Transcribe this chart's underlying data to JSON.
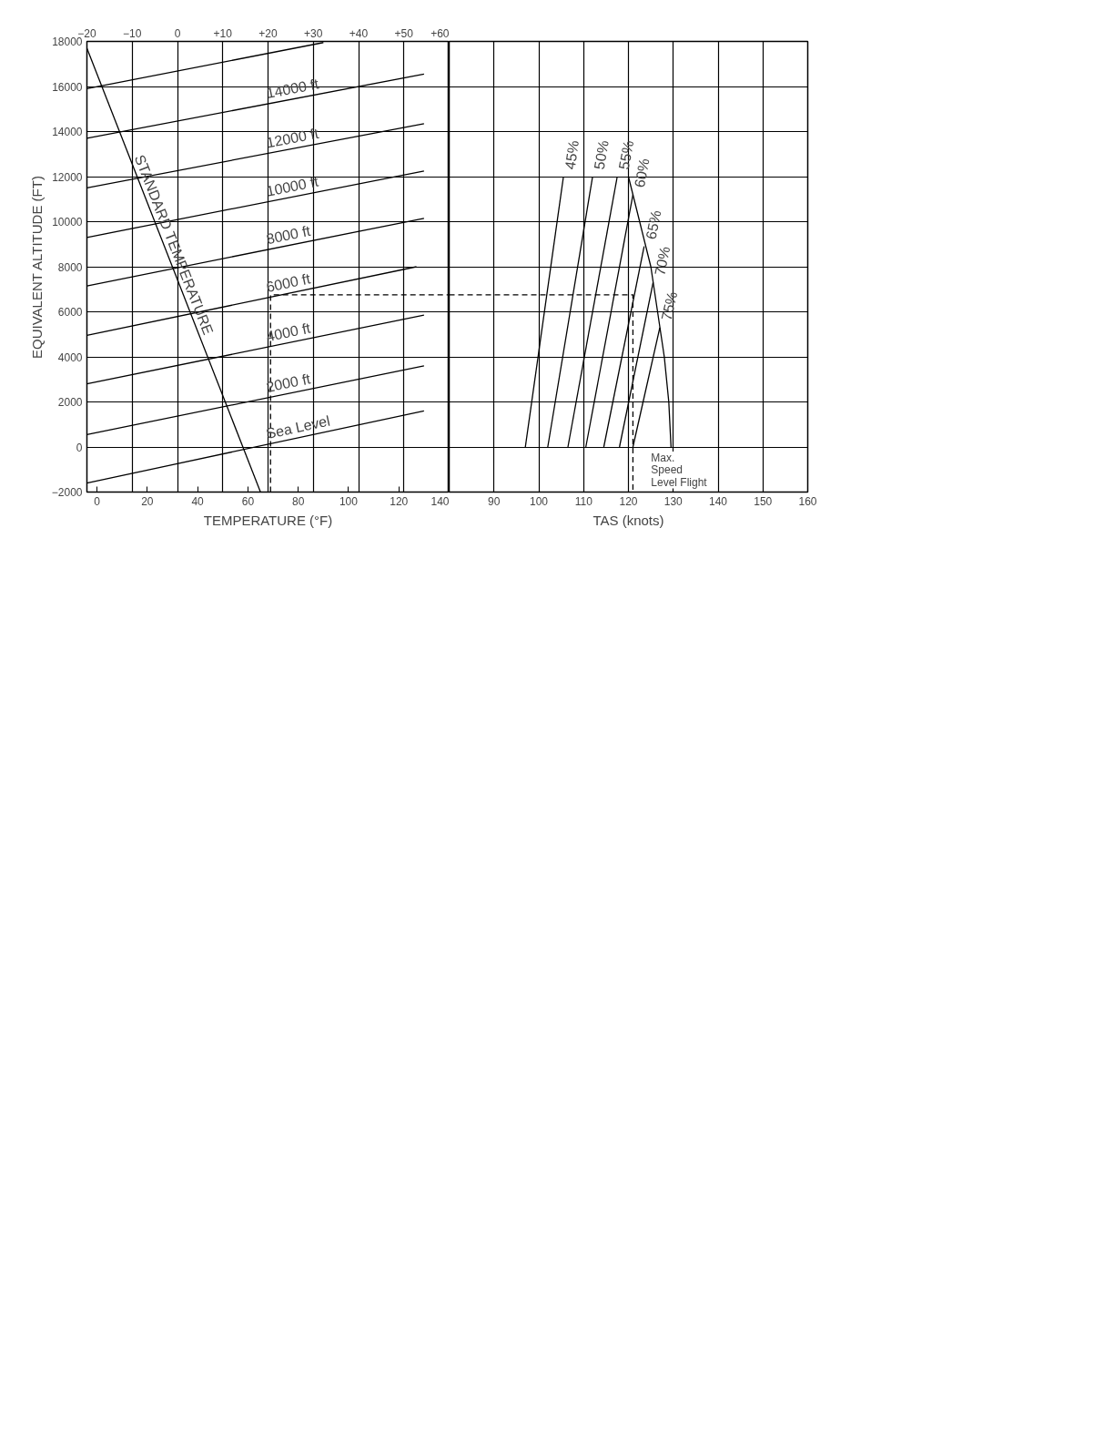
{
  "chart_data": [
    {
      "type": "line",
      "xlabel": "TEMPERATURE (°F)",
      "ylabel": "EQUIVALENT ALTITUDE (FT)",
      "xlim": [
        -4,
        140
      ],
      "xticks": [
        0,
        20,
        40,
        60,
        80,
        100,
        120,
        140
      ],
      "x2lim": [
        -20,
        60
      ],
      "x2ticks": [
        {
          "value": -20,
          "label": "−20"
        },
        {
          "value": -10,
          "label": "−10"
        },
        0,
        {
          "value": 10,
          "label": "+10"
        },
        {
          "value": 20,
          "label": "+20"
        },
        {
          "value": 30,
          "label": "+30"
        },
        {
          "value": 40,
          "label": "+40"
        },
        {
          "value": 50,
          "label": "+50"
        },
        {
          "value": 60,
          "label": "+60"
        }
      ],
      "ylim": [
        -2000,
        18000
      ],
      "yticks": [
        {
          "value": -2000,
          "label": "−2000"
        },
        0,
        2000,
        4000,
        6000,
        8000,
        10000,
        12000,
        14000,
        16000,
        18000
      ],
      "grid": true,
      "series": [
        {
          "name": "Sea Level",
          "color": "#000000",
          "x": [
            -4,
            130
          ],
          "values": [
            -1600,
            1600
          ]
        },
        {
          "name": "2000 ft",
          "color": "#000000",
          "x": [
            -4,
            130
          ],
          "values": [
            550,
            3600
          ]
        },
        {
          "name": "4000 ft",
          "color": "#000000",
          "x": [
            -4,
            130
          ],
          "values": [
            2800,
            5850
          ]
        },
        {
          "name": "6000 ft",
          "color": "#000000",
          "x": [
            -4,
            127
          ],
          "values": [
            4950,
            8000
          ]
        },
        {
          "name": "8000 ft",
          "color": "#000000",
          "x": [
            -4,
            130
          ],
          "values": [
            7150,
            10150
          ]
        },
        {
          "name": "10000 ft",
          "color": "#000000",
          "x": [
            -4,
            130
          ],
          "values": [
            9300,
            12250
          ]
        },
        {
          "name": "12000 ft",
          "color": "#000000",
          "x": [
            -4,
            130
          ],
          "values": [
            11500,
            14350
          ]
        },
        {
          "name": "14000 ft",
          "color": "#000000",
          "x": [
            -4,
            130
          ],
          "values": [
            13700,
            16550
          ]
        },
        {
          "color": "#000000",
          "x": [
            -4,
            90
          ],
          "values": [
            15900,
            17950
          ]
        },
        {
          "name": "STANDARD TEMPERATURE",
          "color": "#000000",
          "x": [
            -4,
            65
          ],
          "values": [
            17700,
            -2000
          ]
        },
        {
          "color": "#000000",
          "line_style": "dashed",
          "x": [
            69,
            69,
            140
          ],
          "values": [
            -2000,
            6750,
            6750
          ]
        }
      ]
    },
    {
      "type": "line",
      "xlabel": "TAS (knots)",
      "xlim": [
        80,
        160
      ],
      "xticks": [
        90,
        100,
        110,
        120,
        130,
        140,
        150,
        160
      ],
      "ylim": [
        -2000,
        18000
      ],
      "yticks": [
        -2000,
        0,
        2000,
        4000,
        6000,
        8000,
        10000,
        12000,
        14000,
        16000,
        18000
      ],
      "tick_labels": "x",
      "grid": true,
      "series": [
        {
          "name": "45%",
          "color": "#000000",
          "x": [
            97,
            105.5
          ],
          "values": [
            0,
            12000
          ]
        },
        {
          "name": "50%",
          "color": "#000000",
          "x": [
            102,
            112
          ],
          "values": [
            0,
            12000
          ]
        },
        {
          "name": "55%",
          "color": "#000000",
          "x": [
            106.5,
            117.5
          ],
          "values": [
            0,
            12000
          ]
        },
        {
          "name": "60%",
          "color": "#000000",
          "x": [
            110.5,
            121
          ],
          "values": [
            0,
            11200
          ]
        },
        {
          "name": "65%",
          "color": "#000000",
          "x": [
            114.5,
            123.5
          ],
          "values": [
            0,
            8900
          ]
        },
        {
          "name": "70%",
          "color": "#000000",
          "x": [
            118,
            125.5
          ],
          "values": [
            0,
            7300
          ]
        },
        {
          "name": "75%",
          "color": "#000000",
          "x": [
            121,
            127
          ],
          "values": [
            0,
            5300
          ]
        },
        {
          "color": "#000000",
          "x": [
            120,
            122.5,
            125,
            126.5,
            128,
            129,
            129.5
          ],
          "values": [
            12000,
            10000,
            8000,
            6000,
            4000,
            2000,
            0
          ]
        },
        {
          "color": "#000000",
          "line_style": "dashed",
          "x": [
            80,
            121,
            121
          ],
          "values": [
            6750,
            6750,
            -2000
          ]
        }
      ],
      "annotations": [
        {
          "text": "Max.\nSpeed\nLevel Flight",
          "x": 129.5,
          "y": 0
        }
      ]
    }
  ]
}
